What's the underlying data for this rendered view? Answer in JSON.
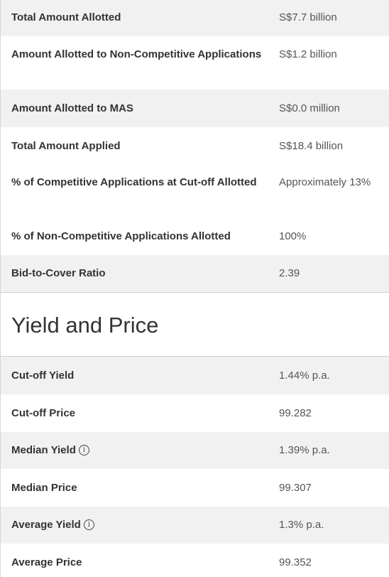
{
  "allotment": {
    "rows": [
      {
        "label": "Total Amount Allotted",
        "value": "S$7.7 billion"
      },
      {
        "label": "Amount Allotted to Non-Competitive Applications",
        "value": "S$1.2 billion"
      },
      {
        "label": "Amount Allotted to MAS",
        "value": "S$0.0 million"
      },
      {
        "label": "Total Amount Applied",
        "value": "S$18.4 billion"
      },
      {
        "label": "% of Competitive Applications at Cut-off Allotted",
        "value": "Approximately 13%"
      },
      {
        "label": "% of Non-Competitive Applications Allotted",
        "value": "100%"
      },
      {
        "label": "Bid-to-Cover Ratio",
        "value": "2.39"
      }
    ]
  },
  "yield_price": {
    "heading": "Yield and Price",
    "rows": [
      {
        "label": "Cut-off Yield",
        "value": "1.44% p.a."
      },
      {
        "label": "Cut-off Price",
        "value": "99.282"
      },
      {
        "label": "Median Yield",
        "value": "1.39% p.a.",
        "info_icon": "info-icon"
      },
      {
        "label": "Median Price",
        "value": "99.307"
      },
      {
        "label": "Average Yield",
        "value": "1.3% p.a.",
        "info_icon": "info-icon"
      },
      {
        "label": "Average Price",
        "value": "99.352"
      }
    ]
  },
  "info_icon_glyph": "i",
  "colors": {
    "row_shade": "#f1f1f1",
    "label_text": "#333333",
    "value_text": "#555555",
    "border": "#cfcfcf"
  }
}
